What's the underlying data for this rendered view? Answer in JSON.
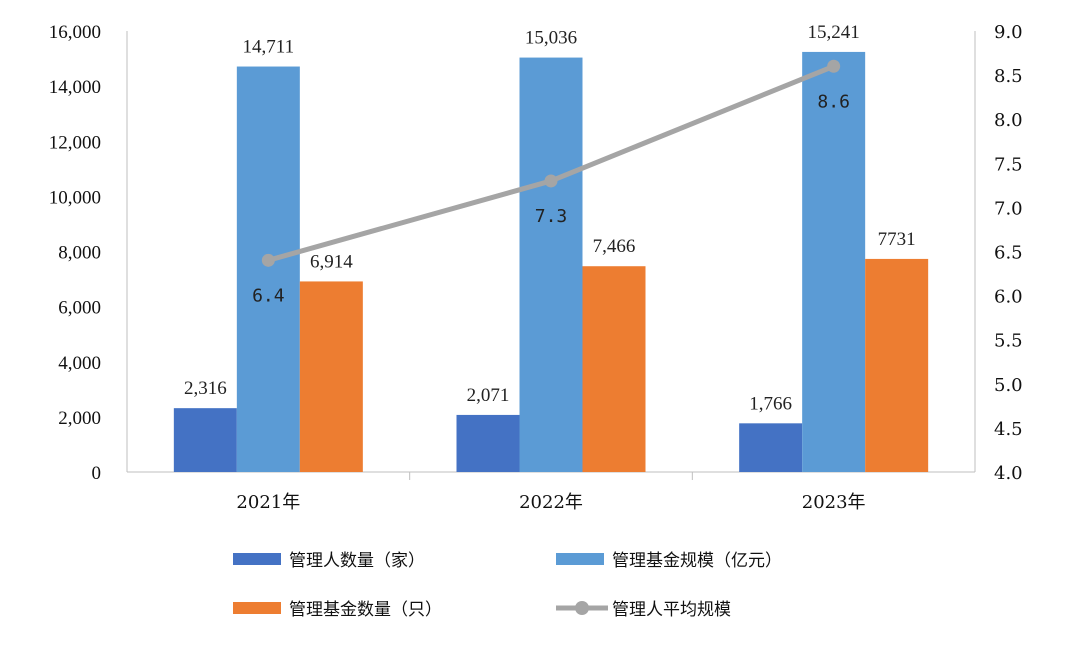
{
  "chart_data": {
    "type": "bar",
    "categories": [
      "2021年",
      "2022年",
      "2023年"
    ],
    "series": [
      {
        "name": "管理人数量（家）",
        "type": "bar",
        "axis": "left",
        "color": "#4472C4",
        "values": [
          2316,
          2071,
          1766
        ],
        "labels": [
          "2,316",
          "2,071",
          "1,766"
        ]
      },
      {
        "name": "管理基金规模（亿元）",
        "type": "bar",
        "axis": "left",
        "color": "#5B9BD5",
        "values": [
          14711,
          15036,
          15241
        ],
        "labels": [
          "14,711",
          "15,036",
          "15,241"
        ]
      },
      {
        "name": "管理基金数量（只）",
        "type": "bar",
        "axis": "left",
        "color": "#ED7D31",
        "values": [
          6914,
          7466,
          7731
        ],
        "labels": [
          "6,914",
          "7,466",
          "7731"
        ]
      },
      {
        "name": "管理人平均规模",
        "type": "line",
        "axis": "right",
        "color": "#A5A5A5",
        "values": [
          6.4,
          7.3,
          8.6
        ],
        "labels": [
          "6.4",
          "7.3",
          "8.6"
        ]
      }
    ],
    "left_axis": {
      "min": 0,
      "max": 16000,
      "ticks": [
        "0",
        "2,000",
        "4,000",
        "6,000",
        "8,000",
        "10,000",
        "12,000",
        "14,000",
        "16,000"
      ]
    },
    "right_axis": {
      "min": 4.0,
      "max": 9.0,
      "ticks": [
        "4.0",
        "4.5",
        "5.0",
        "5.5",
        "6.0",
        "6.5",
        "7.0",
        "7.5",
        "8.0",
        "8.5",
        "9.0"
      ]
    },
    "legend_position": "bottom",
    "grid": false
  }
}
